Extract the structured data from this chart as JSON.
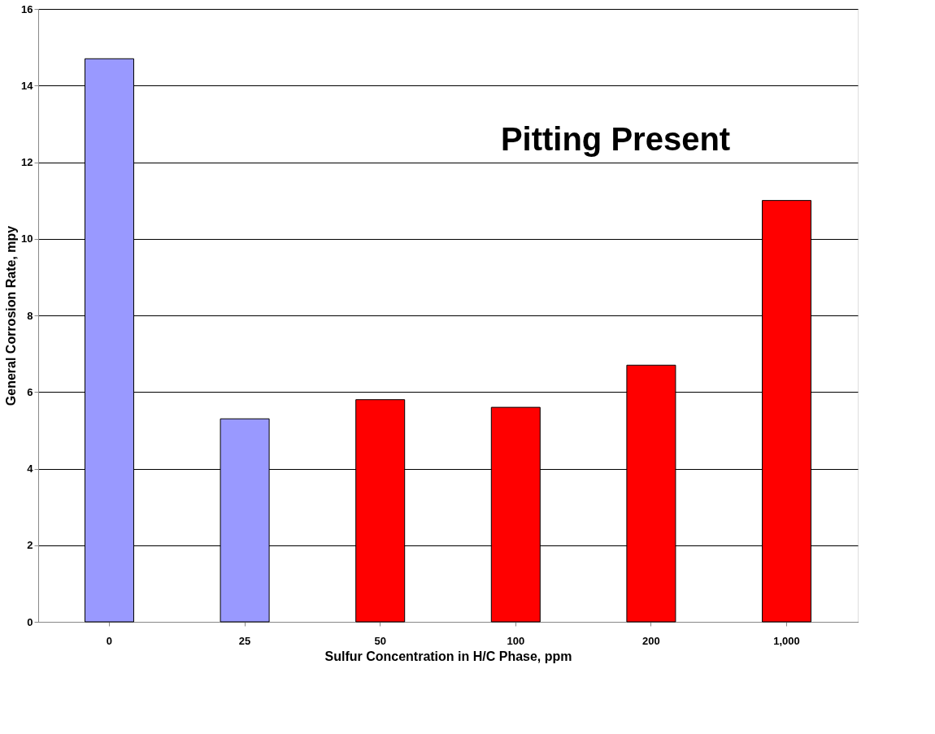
{
  "chart_data": {
    "type": "bar",
    "xlabel": "Sulfur Concentration in H/C Phase, ppm",
    "ylabel": "General Corrosion Rate, mpy",
    "categories": [
      "0",
      "25",
      "50",
      "100",
      "200",
      "1,000"
    ],
    "values": [
      14.7,
      5.3,
      5.8,
      5.6,
      6.7,
      11.0
    ],
    "colors": [
      "#9999ff",
      "#9999ff",
      "#ff0000",
      "#ff0000",
      "#ff0000",
      "#ff0000"
    ],
    "ylim": [
      0,
      16
    ],
    "yticks": [
      0,
      2,
      4,
      6,
      8,
      10,
      12,
      14,
      16
    ],
    "grid": "y",
    "annotations": [
      "Pitting Present"
    ]
  }
}
